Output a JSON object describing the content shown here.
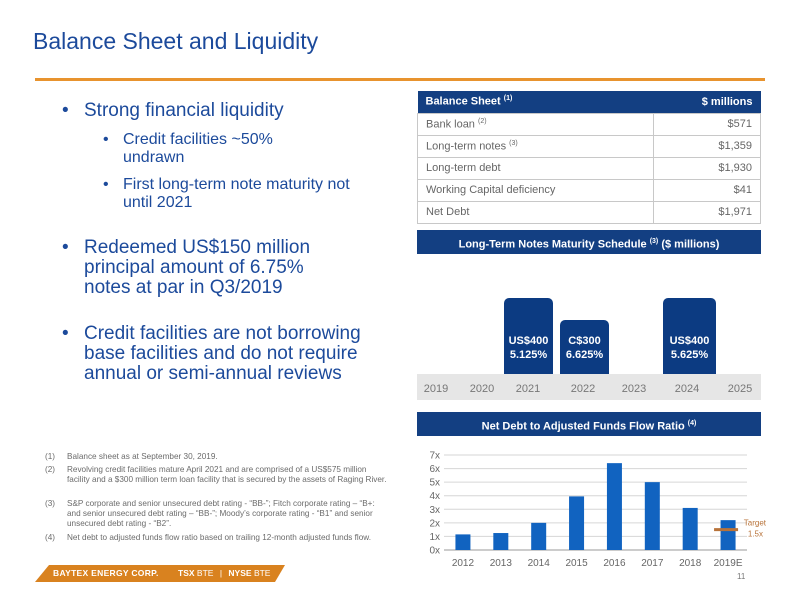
{
  "header": {
    "title": "Balance Sheet and Liquidity"
  },
  "bullets": {
    "b1": "Strong financial liquidity",
    "b1_sub1": "Credit facilities ~50% undrawn",
    "b1_sub2": "First long-term note maturity not until 2021",
    "b2": "Redeemed US$150 million principal amount of 6.75% notes at par in Q3/2019",
    "b3": "Credit facilities are not borrowing base facilities and do not require annual or semi-annual reviews"
  },
  "table": {
    "header_left": "Balance Sheet",
    "header_left_note": "(1)",
    "header_right": "$ millions",
    "rows": [
      {
        "label": "Bank loan",
        "note": "(2)",
        "value": "$571"
      },
      {
        "label": "Long-term notes",
        "note": "(3)",
        "value": "$1,359"
      },
      {
        "label": "Long-term debt",
        "note": "",
        "value": "$1,930"
      },
      {
        "label": "Working Capital deficiency",
        "note": "",
        "value": "$41"
      },
      {
        "label": "Net Debt",
        "note": "",
        "value": "$1,971"
      }
    ]
  },
  "maturity": {
    "title_a": "Long-Term Notes Maturity Schedule",
    "title_note": "(3)",
    "title_b": "($ millions)",
    "years": [
      "2019",
      "2020",
      "2021",
      "2022",
      "2023",
      "2024",
      "2025"
    ],
    "notes": [
      {
        "year": "2021",
        "amount": "US$400",
        "rate": "5.125%"
      },
      {
        "year": "2022",
        "amount": "C$300",
        "rate": "6.625%"
      },
      {
        "year": "2024",
        "amount": "US$400",
        "rate": "5.625%"
      }
    ]
  },
  "ratio": {
    "title_a": "Net Debt to Adjusted Funds Flow Ratio",
    "title_note": "(4)",
    "target_label_1": "Target",
    "target_label_2": "1.5x"
  },
  "chart_data": {
    "type": "bar",
    "categories": [
      "2012",
      "2013",
      "2014",
      "2015",
      "2016",
      "2017",
      "2018",
      "2019E"
    ],
    "values": [
      1.15,
      1.25,
      2.0,
      3.95,
      6.4,
      5.0,
      3.1,
      2.2
    ],
    "ylim": [
      0,
      7
    ],
    "yticks": [
      "0x",
      "1x",
      "2x",
      "3x",
      "4x",
      "5x",
      "6x",
      "7x"
    ],
    "target": 1.5,
    "colors": {
      "bar": "#1163c0",
      "target": "#b8733a"
    },
    "grid": true
  },
  "footnotes": [
    {
      "n": "(1)",
      "text": "Balance sheet as at September 30, 2019."
    },
    {
      "n": "(2)",
      "text": "Revolving credit facilities mature April 2021 and are comprised of a US$575 million facility and a $300 million term loan facility that is secured by the assets of Raging River."
    },
    {
      "n": "(3)",
      "text": "S&P corporate and senior unsecured debt rating - “BB-”; Fitch corporate rating – “B+: and senior unsecured debt rating – “BB-”; Moody’s corporate rating - “B1” and senior unsecured debt rating - “B2”."
    },
    {
      "n": "(4)",
      "text": "Net debt to adjusted funds flow ratio based on trailing 12-month adjusted funds flow."
    }
  ],
  "footer": {
    "company": "BAYTEX ENERGY CORP.",
    "tsx_label": "TSX",
    "tsx_ticker": "BTE",
    "nyse_label": "NYSE",
    "nyse_ticker": "BTE",
    "page": "11"
  }
}
